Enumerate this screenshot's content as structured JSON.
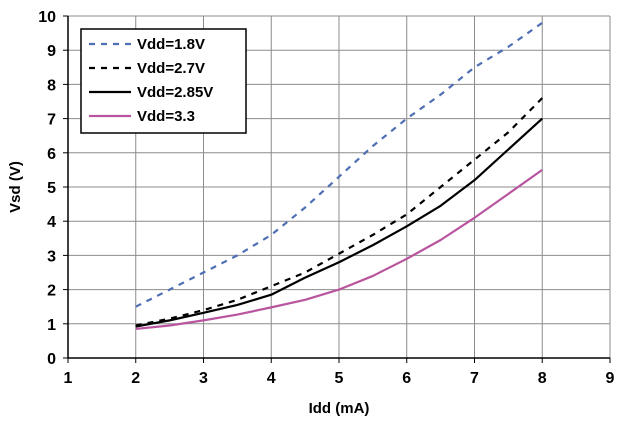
{
  "chart_data": {
    "type": "line",
    "title": "",
    "xlabel": "Idd (mA)",
    "ylabel": "Vsd (V)",
    "xlim": [
      1,
      9
    ],
    "ylim": [
      0,
      10
    ],
    "xticks": [
      "1",
      "2",
      "3",
      "4",
      "5",
      "6",
      "7",
      "8",
      "9"
    ],
    "yticks": [
      "0",
      "1",
      "2",
      "3",
      "4",
      "5",
      "6",
      "7",
      "8",
      "9",
      "10"
    ],
    "grid": true,
    "legend_position": "top-left",
    "series": [
      {
        "name": "Vdd=1.8V",
        "color": "#4f6fb5",
        "dash": "dashed",
        "x": [
          2,
          2.5,
          3,
          3.5,
          4,
          4.5,
          5,
          5.5,
          6,
          6.5,
          7,
          7.5,
          8
        ],
        "y": [
          1.5,
          2.0,
          2.5,
          3.0,
          3.6,
          4.4,
          5.3,
          6.2,
          7.0,
          7.7,
          8.5,
          9.1,
          9.8
        ]
      },
      {
        "name": "Vdd=2.7V",
        "color": "#000000",
        "dash": "dashed",
        "x": [
          2,
          2.5,
          3,
          3.5,
          4,
          4.5,
          5,
          5.5,
          6,
          6.5,
          7,
          7.5,
          8
        ],
        "y": [
          0.95,
          1.15,
          1.4,
          1.7,
          2.1,
          2.5,
          3.05,
          3.6,
          4.2,
          5.0,
          5.8,
          6.6,
          7.6
        ]
      },
      {
        "name": "Vdd=2.85V",
        "color": "#000000",
        "dash": "solid",
        "x": [
          2,
          2.5,
          3,
          3.5,
          4,
          4.5,
          5,
          5.5,
          6,
          6.5,
          7,
          7.5,
          8
        ],
        "y": [
          0.92,
          1.1,
          1.32,
          1.55,
          1.85,
          2.35,
          2.8,
          3.3,
          3.85,
          4.45,
          5.2,
          6.1,
          7.0
        ]
      },
      {
        "name": "Vdd=3.3",
        "color": "#b9549e",
        "dash": "solid",
        "x": [
          2,
          2.5,
          3,
          3.5,
          4,
          4.5,
          5,
          5.5,
          6,
          6.5,
          7,
          7.5,
          8
        ],
        "y": [
          0.85,
          0.95,
          1.1,
          1.27,
          1.48,
          1.7,
          2.0,
          2.4,
          2.9,
          3.45,
          4.1,
          4.8,
          5.5
        ]
      }
    ]
  }
}
